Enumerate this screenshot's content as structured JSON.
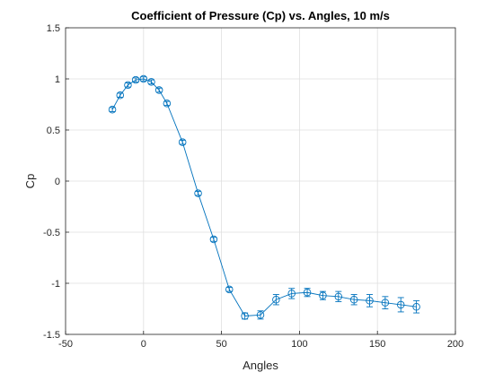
{
  "chart_data": {
    "type": "line",
    "title": "Coefficient of Pressure (Cp) vs. Angles, 10 m/s",
    "xlabel": "Angles",
    "ylabel": "Cp",
    "xlim": [
      -50,
      200
    ],
    "ylim": [
      -1.5,
      1.5
    ],
    "xticks": [
      "-50",
      "0",
      "50",
      "100",
      "150",
      "200"
    ],
    "yticks": [
      "-1.5",
      "-1",
      "-0.5",
      "0",
      "0.5",
      "1",
      "1.5"
    ],
    "grid": true,
    "marker": "circle",
    "error_bars": true,
    "series_color": "#0072BD",
    "series": [
      {
        "x": [
          -20,
          -15,
          -10,
          -5,
          0,
          5,
          10,
          15,
          25,
          35,
          45,
          55,
          65,
          75,
          85,
          95,
          105,
          115,
          125,
          135,
          145,
          155,
          165,
          175
        ],
        "y": [
          0.7,
          0.84,
          0.94,
          0.99,
          1.0,
          0.97,
          0.89,
          0.76,
          0.38,
          -0.12,
          -0.57,
          -1.06,
          -1.32,
          -1.31,
          -1.16,
          -1.1,
          -1.09,
          -1.12,
          -1.13,
          -1.16,
          -1.17,
          -1.19,
          -1.21,
          -1.23
        ],
        "err": [
          0.02,
          0.02,
          0.02,
          0.02,
          0.02,
          0.02,
          0.02,
          0.02,
          0.02,
          0.02,
          0.02,
          0.02,
          0.03,
          0.04,
          0.05,
          0.05,
          0.04,
          0.04,
          0.05,
          0.05,
          0.06,
          0.06,
          0.07,
          0.06
        ]
      }
    ]
  }
}
